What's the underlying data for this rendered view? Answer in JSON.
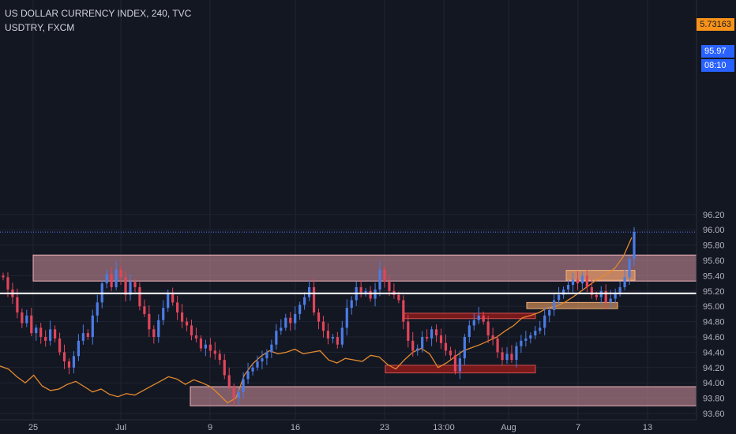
{
  "legend": {
    "main_line": "US DOLLAR CURRENCY INDEX, 240, TVC",
    "compare_line": "USDTRY, FXCM"
  },
  "price_tags": {
    "compare_value": "5.73163",
    "last_price": "95.97",
    "countdown": "08:10"
  },
  "colors": {
    "background": "#131722",
    "grid": "#1f2433",
    "axis_text": "#b2b5be",
    "candle_up": "#4c7ce6",
    "candle_down": "#e2455a",
    "compare_line": "#e58a2e",
    "zone_pink": "#e7a0ab",
    "zone_red": "#8b1a1a",
    "zone_orange": "#f0a060",
    "level_line": "#ffffff",
    "last_price_tag": "#2962ff",
    "compare_tag": "#f7931a"
  },
  "chart_data": {
    "type": "candlestick",
    "title": "US DOLLAR CURRENCY INDEX, 240, TVC",
    "comparison_symbol": "USDTRY, FXCM",
    "y_axis": {
      "ylim": [
        93.6,
        96.3
      ],
      "ticks": [
        "93.60",
        "93.80",
        "94.00",
        "94.20",
        "94.40",
        "94.60",
        "94.80",
        "95.00",
        "95.20",
        "95.40",
        "95.60",
        "95.80",
        "96.00",
        "96.20"
      ]
    },
    "x_axis": {
      "ticks": [
        "25",
        "Jul",
        "9",
        "16",
        "23",
        "13:00",
        "Aug",
        "7",
        "13"
      ]
    },
    "series": [
      {
        "name": "US DOLLAR CURRENCY INDEX",
        "closes": [
          95.38,
          95.22,
          95.12,
          94.92,
          94.78,
          94.88,
          94.65,
          94.72,
          94.6,
          94.55,
          94.7,
          94.58,
          94.4,
          94.28,
          94.2,
          94.35,
          94.55,
          94.65,
          94.6,
          94.88,
          95.05,
          95.3,
          95.42,
          95.25,
          95.48,
          95.38,
          95.15,
          95.32,
          95.25,
          95.0,
          94.9,
          94.7,
          94.6,
          94.82,
          94.98,
          95.18,
          95.05,
          94.92,
          94.8,
          94.75,
          94.62,
          94.58,
          94.45,
          94.5,
          94.42,
          94.38,
          94.3,
          94.1,
          93.95,
          93.8,
          93.88,
          94.05,
          94.15,
          94.2,
          94.28,
          94.32,
          94.4,
          94.5,
          94.68,
          94.72,
          94.85,
          94.78,
          94.9,
          95.02,
          95.12,
          95.25,
          94.92,
          94.8,
          94.68,
          94.58,
          94.6,
          94.5,
          94.72,
          94.98,
          95.08,
          95.25,
          95.18,
          95.2,
          95.1,
          95.22,
          95.48,
          95.32,
          95.2,
          95.15,
          95.08,
          94.8,
          94.55,
          94.42,
          94.45,
          94.6,
          94.58,
          94.7,
          94.62,
          94.52,
          94.42,
          94.36,
          94.15,
          94.32,
          94.6,
          94.75,
          94.82,
          94.88,
          94.8,
          94.62,
          94.58,
          94.4,
          94.3,
          94.38,
          94.3,
          94.48,
          94.55,
          94.58,
          94.62,
          94.68,
          94.72,
          94.88,
          94.95,
          95.08,
          95.15,
          95.22,
          95.28,
          95.35,
          95.3,
          95.4,
          95.25,
          95.15,
          95.12,
          95.2,
          95.05,
          95.1,
          95.18,
          95.25,
          95.38,
          95.62,
          95.97
        ]
      },
      {
        "name": "USDTRY, FXCM",
        "last_value": "5.73163"
      }
    ],
    "horizontal_level": 95.17,
    "last_price": 95.97,
    "zones": [
      {
        "price_range": [
          95.33,
          95.67
        ],
        "time_span": "25 – 13",
        "style": "pink"
      },
      {
        "price_range": [
          93.7,
          93.95
        ],
        "time_span": "Jul – 13",
        "style": "pink"
      },
      {
        "price_range": [
          94.84,
          94.91
        ],
        "time_span": "23 – Aug",
        "style": "red"
      },
      {
        "price_range": [
          94.13,
          94.23
        ],
        "time_span": "23 – Aug",
        "style": "red"
      },
      {
        "price_range": [
          95.34,
          95.47
        ],
        "time_span": "7 – 13",
        "style": "orange"
      },
      {
        "price_range": [
          94.97,
          95.05
        ],
        "time_span": "Aug – 13",
        "style": "orange"
      }
    ]
  }
}
